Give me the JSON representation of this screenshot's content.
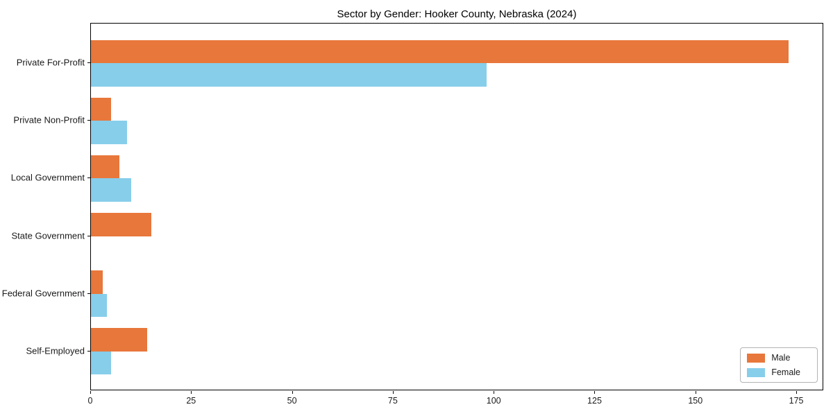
{
  "chart_data": {
    "type": "bar",
    "orientation": "horizontal",
    "title": "Sector by Gender: Hooker County, Nebraska (2024)",
    "categories": [
      "Private For-Profit",
      "Private Non-Profit",
      "Local Government",
      "State Government",
      "Federal Government",
      "Self-Employed"
    ],
    "series": [
      {
        "name": "Male",
        "color": "#e8773b",
        "values": [
          173,
          5,
          7,
          15,
          3,
          14
        ]
      },
      {
        "name": "Female",
        "color": "#87ceeb",
        "values": [
          98,
          9,
          10,
          0,
          4,
          5
        ]
      }
    ],
    "xlabel": "",
    "ylabel": "",
    "xticks": [
      0,
      25,
      50,
      75,
      100,
      125,
      150,
      175
    ],
    "xlim": [
      0,
      181.7
    ],
    "grid": false,
    "legend_position": "lower right",
    "bar_order_note": "Male bar on top, Female bar directly below, per category"
  },
  "colors": {
    "male": "#e8773b",
    "female": "#87ceeb",
    "spine": "#000000",
    "legend_border": "#b3b3b3",
    "background": "#ffffff",
    "text": "#1a1a1a"
  }
}
